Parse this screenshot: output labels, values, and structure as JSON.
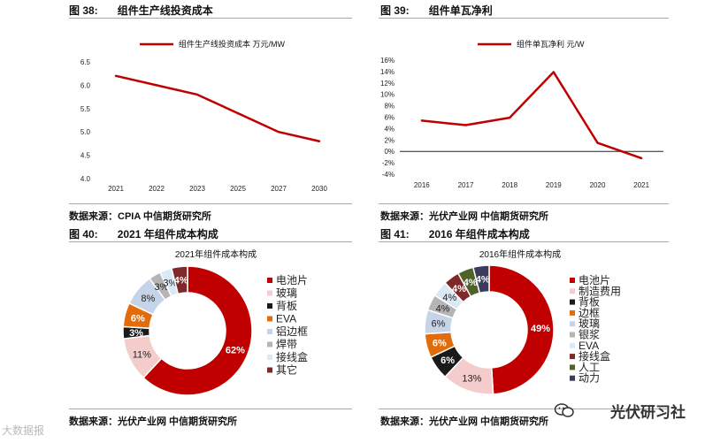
{
  "figures": {
    "fig38": {
      "num": "图 38:",
      "title": "组件生产线投资成本",
      "source": "数据来源：CPIA  中信期货研究所"
    },
    "fig39": {
      "num": "图 39:",
      "title": "组件单瓦净利",
      "source": "数据来源：光伏产业网  中信期货研究所"
    },
    "fig40": {
      "num": "图 40:",
      "title": "2021 年组件成本构成",
      "source": "数据来源：光伏产业网  中信期货研究所"
    },
    "fig41": {
      "num": "图 41:",
      "title": "2016 年组件成本构成",
      "source": "数据来源：光伏产业网  中信期货研究所"
    }
  },
  "watermark": {
    "brand": "光伏研习社",
    "left_text": "大数据报"
  },
  "chart_data": [
    {
      "id": "fig38",
      "type": "line",
      "categories": [
        "2021",
        "2022",
        "2023",
        "2025",
        "2027",
        "2030"
      ],
      "series": [
        {
          "name": "组件生产线投资成本  万元/MW",
          "values": [
            6.2,
            6.0,
            5.8,
            5.4,
            5.0,
            4.8
          ]
        }
      ],
      "ylim": [
        4.0,
        6.5
      ],
      "yticks": [
        "6.5",
        "6.0",
        "5.5",
        "5.0",
        "4.5",
        "4.0"
      ],
      "legend": "top",
      "grid": false,
      "color": "#c00000"
    },
    {
      "id": "fig39",
      "type": "line",
      "categories": [
        "2016",
        "2017",
        "2018",
        "2019",
        "2020",
        "2021"
      ],
      "series": [
        {
          "name": "组件单瓦净利  元/W",
          "values": [
            5.4,
            4.6,
            5.9,
            13.9,
            1.5,
            -1.2
          ]
        }
      ],
      "ylim": [
        -4,
        16
      ],
      "yticks": [
        "16%",
        "14%",
        "12%",
        "10%",
        "8%",
        "6%",
        "4%",
        "2%",
        "0%",
        "-2%",
        "-4%"
      ],
      "legend": "top",
      "grid": false,
      "color": "#c00000"
    },
    {
      "id": "fig40",
      "type": "pie",
      "title": "2021年组件成本构成",
      "labels": [
        "电池片",
        "玻璃",
        "背板",
        "EVA",
        "铝边框",
        "焊带",
        "接线盒",
        "其它"
      ],
      "values": [
        62,
        11,
        3,
        6,
        8,
        3,
        3,
        4
      ],
      "display": [
        "62%",
        "11%",
        "3%",
        "6%",
        "8%",
        "3%",
        "3%",
        "4%"
      ],
      "colors": [
        "#c00000",
        "#f4cccc",
        "#1a1a1a",
        "#e36c0a",
        "#c6d4ea",
        "#b5b5b5",
        "#dbe9f5",
        "#7f2a2a"
      ],
      "legend": "right"
    },
    {
      "id": "fig41",
      "type": "pie",
      "title": "2016年组件成本构成",
      "labels": [
        "电池片",
        "制造费用",
        "背板",
        "边框",
        "玻璃",
        "银浆",
        "EVA",
        "接线盒",
        "人工",
        "动力"
      ],
      "values": [
        49,
        13,
        6,
        6,
        6,
        4,
        4,
        4,
        4,
        4
      ],
      "display": [
        "49%",
        "13%",
        "6%",
        "6%",
        "6%",
        "4%",
        "4%",
        "4%",
        "4%",
        "4%"
      ],
      "colors": [
        "#c00000",
        "#f4cccc",
        "#1a1a1a",
        "#e36c0a",
        "#c6d4ea",
        "#b5b5b5",
        "#dbe9f5",
        "#7f2a2a",
        "#4f6228",
        "#3b3b5c"
      ],
      "legend": "right"
    }
  ]
}
